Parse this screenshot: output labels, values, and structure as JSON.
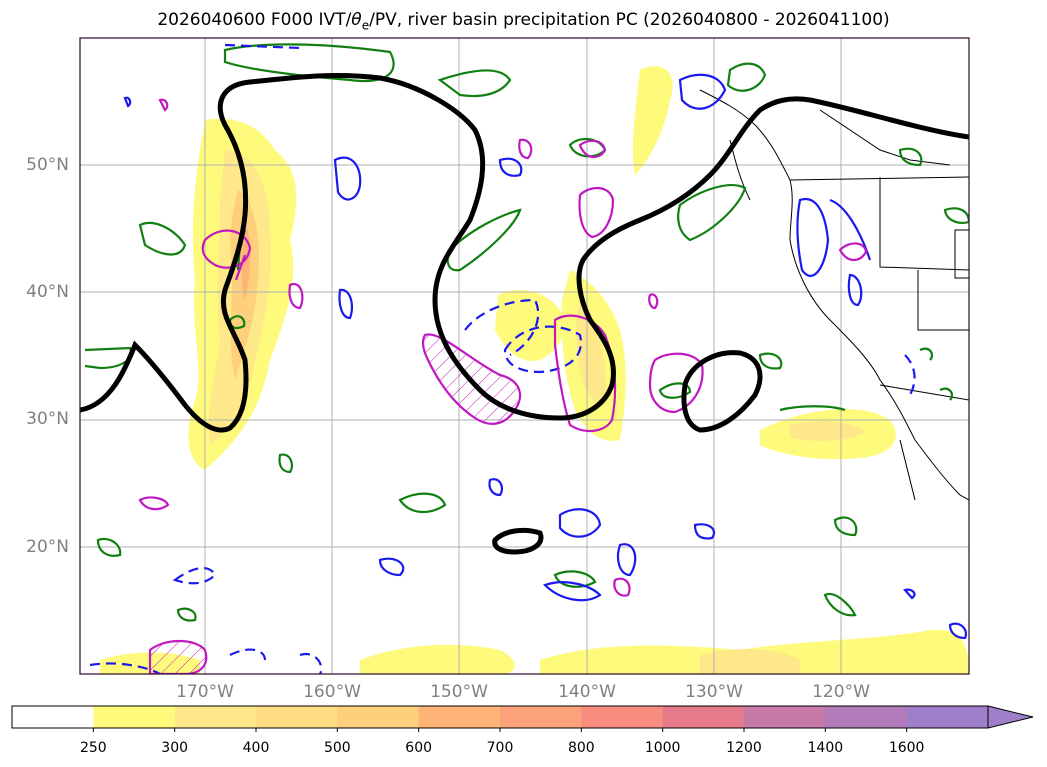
{
  "title": {
    "prefix": "2026040600 F000 IVT/",
    "theta_symbol": "θ",
    "theta_sub": "e",
    "suffix": "/PV, river basin precipitation PC (2026040800 - 2026041100)"
  },
  "axes": {
    "lat_labels": [
      "50°N",
      "40°N",
      "30°N",
      "20°N"
    ],
    "lon_labels": [
      "170°W",
      "160°W",
      "150°W",
      "140°W",
      "130°W",
      "120°W"
    ],
    "gridlines": true
  },
  "colorbar": {
    "ticks": [
      "250",
      "300",
      "400",
      "500",
      "600",
      "700",
      "800",
      "1000",
      "1200",
      "1400",
      "1600"
    ],
    "colors": [
      "#ffffff",
      "#fefb7c",
      "#fee88a",
      "#fedd84",
      "#fecf7c",
      "#fdb476",
      "#fca27a",
      "#f88c7e",
      "#e57a8a",
      "#c77aa8",
      "#b27cbb",
      "#9f7fca"
    ],
    "extend": "max"
  },
  "legend_colors": {
    "ivt_fill": "#fef47c",
    "pv_contour": "#000000",
    "theta_green": "#118011",
    "theta_blue": "#1a1aee",
    "magenta": "#c018c0",
    "gridline": "#b0b0b0",
    "coastline": "#000000"
  }
}
